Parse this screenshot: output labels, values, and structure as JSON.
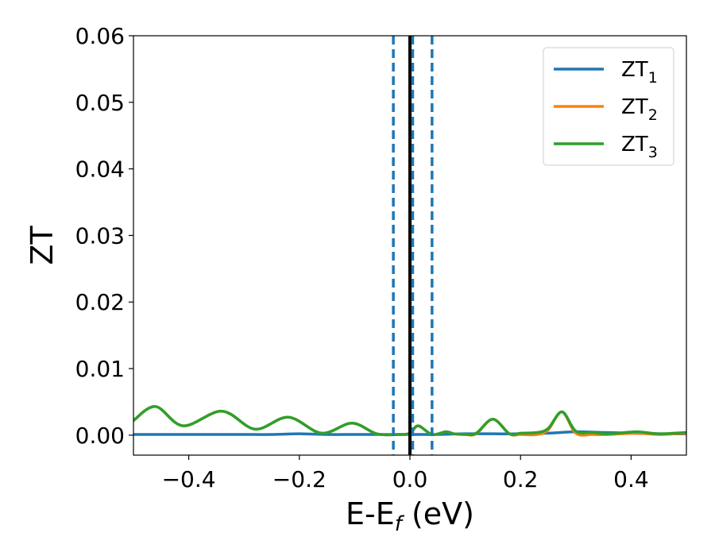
{
  "chart_data": {
    "type": "line",
    "xlabel": "E-E",
    "xlabel_sub": "f",
    "xlabel_unit": " (eV)",
    "ylabel": "ZT",
    "xlim": [
      -0.5,
      0.5
    ],
    "ylim": [
      -0.003,
      0.06
    ],
    "x_ticks": [
      {
        "value": -0.4,
        "label": "−0.4"
      },
      {
        "value": -0.2,
        "label": "−0.2"
      },
      {
        "value": 0.0,
        "label": "0.0"
      },
      {
        "value": 0.2,
        "label": "0.2"
      },
      {
        "value": 0.4,
        "label": "0.4"
      }
    ],
    "y_ticks": [
      {
        "value": 0.0,
        "label": "0.00"
      },
      {
        "value": 0.01,
        "label": "0.01"
      },
      {
        "value": 0.02,
        "label": "0.02"
      },
      {
        "value": 0.03,
        "label": "0.03"
      },
      {
        "value": 0.04,
        "label": "0.04"
      },
      {
        "value": 0.05,
        "label": "0.05"
      },
      {
        "value": 0.06,
        "label": "0.06"
      }
    ],
    "legend_position": "top-right",
    "grid": false,
    "series": [
      {
        "name": "ZT",
        "sub": "1",
        "color": "#1f77b4",
        "x": [
          -0.5,
          -0.45,
          -0.4,
          -0.35,
          -0.3,
          -0.25,
          -0.2,
          -0.15,
          -0.1,
          -0.05,
          -0.02,
          0.0,
          0.02,
          0.05,
          0.1,
          0.15,
          0.2,
          0.25,
          0.3,
          0.35,
          0.4,
          0.45,
          0.5
        ],
        "y": [
          0.0001,
          0.0001,
          0.0001,
          0.0001,
          0.0001,
          0.0001,
          0.0002,
          0.0001,
          0.0001,
          0.0001,
          0.0001,
          0.0001,
          0.0001,
          0.0001,
          0.0002,
          0.0002,
          0.0002,
          0.0003,
          0.0005,
          0.0004,
          0.0003,
          0.0002,
          0.0002
        ]
      },
      {
        "name": "ZT",
        "sub": "2",
        "color": "#ff7f0e",
        "x": [
          -0.5,
          -0.46,
          -0.41,
          -0.34,
          -0.28,
          -0.22,
          -0.16,
          -0.105,
          -0.06,
          -0.02,
          0.0,
          0.015,
          0.04,
          0.065,
          0.08,
          0.1,
          0.12,
          0.15,
          0.18,
          0.2,
          0.23,
          0.25,
          0.275,
          0.3,
          0.33,
          0.36,
          0.41,
          0.45,
          0.5
        ],
        "y": [
          0.0022,
          0.0043,
          0.0014,
          0.0036,
          0.0009,
          0.0027,
          0.0003,
          0.0018,
          0.0002,
          0.0001,
          0.0003,
          0.0014,
          0.0001,
          0.0005,
          0.0002,
          0.0001,
          0.0002,
          0.0024,
          0.0002,
          0.0001,
          0.0001,
          0.0008,
          0.0035,
          0.0003,
          0.0001,
          0.0001,
          0.0003,
          0.0001,
          0.0003
        ]
      },
      {
        "name": "ZT",
        "sub": "3",
        "color": "#2ca02c",
        "x": [
          -0.5,
          -0.46,
          -0.41,
          -0.34,
          -0.28,
          -0.22,
          -0.16,
          -0.105,
          -0.06,
          -0.02,
          0.0,
          0.015,
          0.04,
          0.065,
          0.08,
          0.1,
          0.12,
          0.15,
          0.18,
          0.2,
          0.23,
          0.25,
          0.275,
          0.3,
          0.33,
          0.36,
          0.41,
          0.45,
          0.5
        ],
        "y": [
          0.0022,
          0.0043,
          0.0014,
          0.0036,
          0.0009,
          0.0027,
          0.0003,
          0.0018,
          0.0002,
          0.0001,
          0.0003,
          0.0014,
          0.0001,
          0.0005,
          0.0002,
          0.0001,
          0.0003,
          0.0024,
          0.0002,
          0.0003,
          0.0004,
          0.001,
          0.0035,
          0.0006,
          0.0004,
          0.0002,
          0.0005,
          0.0002,
          0.0004
        ]
      }
    ],
    "vlines": [
      {
        "x": 0.0,
        "style": "solid",
        "color": "#000000"
      },
      {
        "x": -0.03,
        "style": "dashed",
        "color": "#1f77b4"
      },
      {
        "x": 0.005,
        "style": "dashed",
        "color": "#1f77b4"
      },
      {
        "x": 0.04,
        "style": "dashed",
        "color": "#1f77b4"
      }
    ]
  }
}
